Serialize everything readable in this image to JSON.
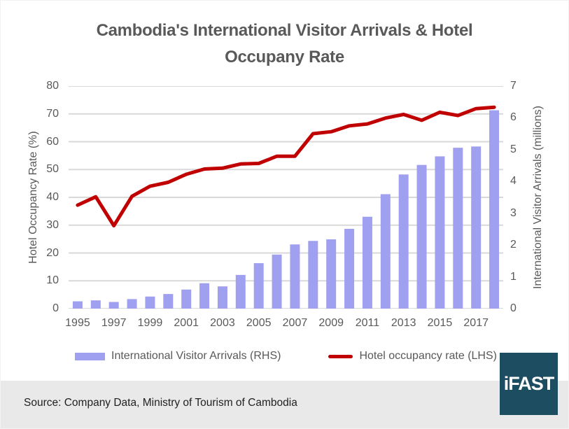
{
  "title": {
    "line1": "Cambodia's International Visitor Arrivals & Hotel",
    "line2": "Occupany Rate"
  },
  "chart_data": {
    "type": "bar",
    "subtype": "bar-and-line-dual-axis",
    "x": [
      1995,
      1996,
      1997,
      1998,
      1999,
      2000,
      2001,
      2002,
      2003,
      2004,
      2005,
      2006,
      2007,
      2008,
      2009,
      2010,
      2011,
      2012,
      2013,
      2014,
      2015,
      2016,
      2017,
      2018
    ],
    "x_tick_labels": [
      "1995",
      "1997",
      "1999",
      "2001",
      "2003",
      "2005",
      "2007",
      "2009",
      "2011",
      "2013",
      "2015",
      "2017"
    ],
    "series": [
      {
        "name": "International Visitor Arrivals (RHS)",
        "type": "bar",
        "axis": "right",
        "color": "#a0a0f0",
        "values": [
          0.23,
          0.26,
          0.21,
          0.3,
          0.38,
          0.46,
          0.6,
          0.8,
          0.7,
          1.06,
          1.43,
          1.7,
          2.02,
          2.13,
          2.18,
          2.51,
          2.89,
          3.6,
          4.22,
          4.52,
          4.79,
          5.06,
          5.1,
          6.24
        ]
      },
      {
        "name": "Hotel occupancy rate (LHS)",
        "type": "line",
        "axis": "left",
        "color": "#c00000",
        "values": [
          37.2,
          40.2,
          29.8,
          40.4,
          44.0,
          45.4,
          48.3,
          50.2,
          50.5,
          52.0,
          52.2,
          54.8,
          54.8,
          62.9,
          63.6,
          65.7,
          66.4,
          68.5,
          69.8,
          67.7,
          70.6,
          69.4,
          71.9,
          72.4
        ]
      }
    ],
    "left_axis": {
      "label": "Hotel Occupancy Rate (%)",
      "min": 0,
      "max": 80,
      "step": 10
    },
    "right_axis": {
      "label": "International Visitor Arrivals (millions)",
      "min": 0,
      "max": 7,
      "step": 1
    },
    "grid": true,
    "legend_position": "bottom"
  },
  "colors": {
    "grid": "#d9d9d9",
    "text_gray": "#595959",
    "band_bg": "#e9e9e9",
    "logo_bg": "#1d4d61"
  },
  "footer": {
    "source": "Source: Company Data, Ministry of Tourism of Cambodia",
    "logo_text": "iFAST"
  }
}
